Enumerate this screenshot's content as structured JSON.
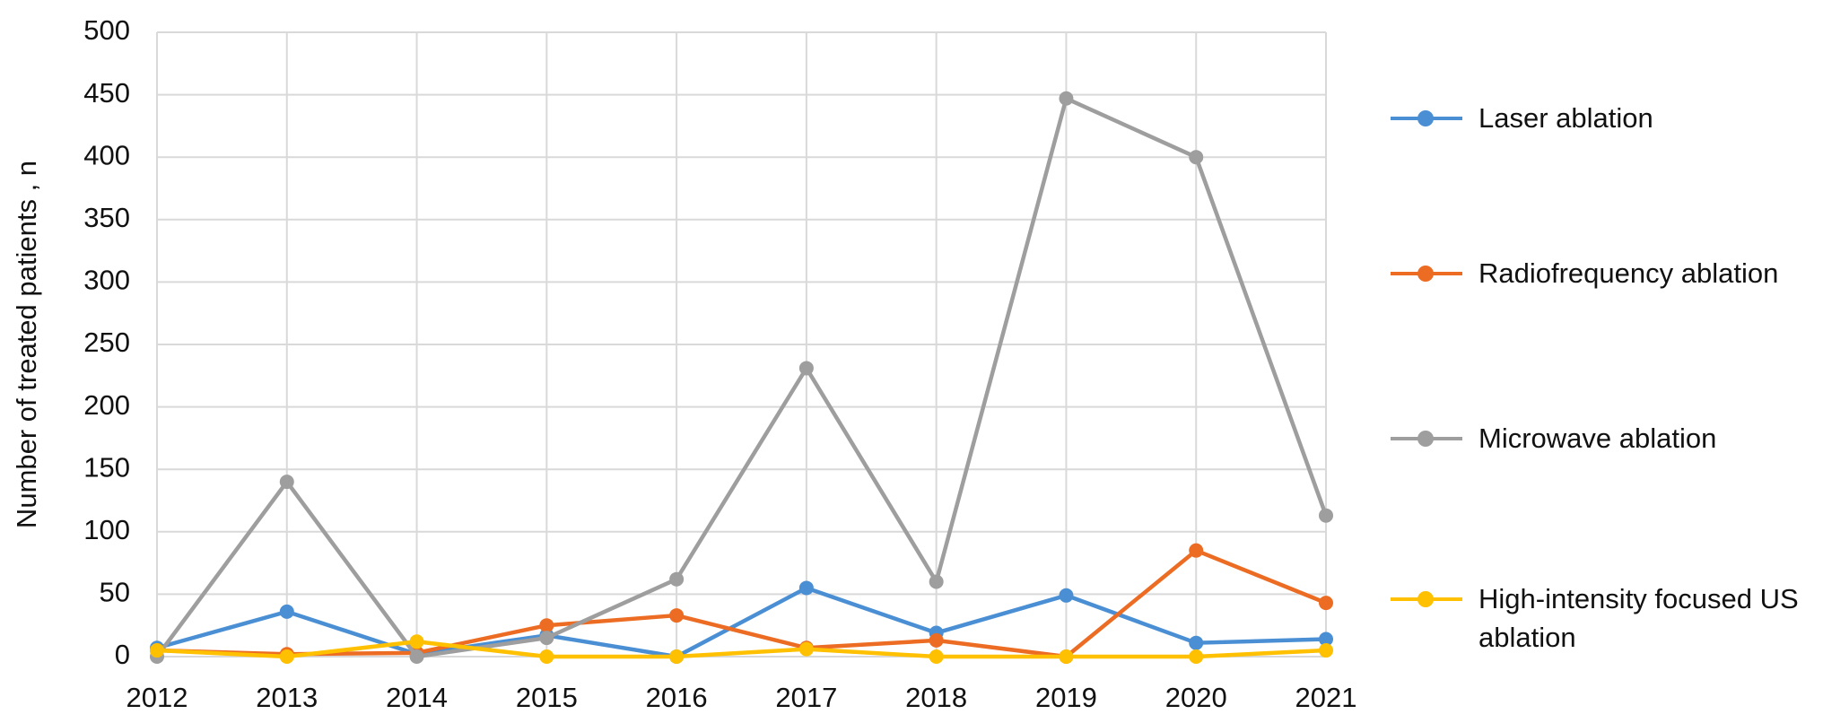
{
  "chart_data": {
    "type": "line",
    "y_label": "Number of treated patients , n",
    "categories": [
      "2012",
      "2013",
      "2014",
      "2015",
      "2016",
      "2017",
      "2018",
      "2019",
      "2020",
      "2021"
    ],
    "series": [
      {
        "name": "Laser ablation",
        "color": "#4a8fd4",
        "values": [
          7,
          36,
          2,
          17,
          0,
          55,
          19,
          49,
          11,
          14
        ]
      },
      {
        "name": "Radiofrequency ablation",
        "color": "#ec6c23",
        "values": [
          5,
          2,
          3,
          25,
          33,
          7,
          13,
          0,
          85,
          43
        ]
      },
      {
        "name": "Microwave ablation",
        "color": "#9e9e9e",
        "values": [
          0,
          140,
          0,
          15,
          62,
          231,
          60,
          447,
          400,
          113
        ]
      },
      {
        "name": "High-intensity focused US ablation",
        "color": "#ffc000",
        "values": [
          5,
          0,
          12,
          0,
          0,
          6,
          0,
          0,
          0,
          5
        ]
      }
    ],
    "ylim": [
      0,
      500
    ],
    "yticks": [
      0,
      50,
      100,
      150,
      200,
      250,
      300,
      350,
      400,
      450,
      500
    ],
    "grid": true
  }
}
